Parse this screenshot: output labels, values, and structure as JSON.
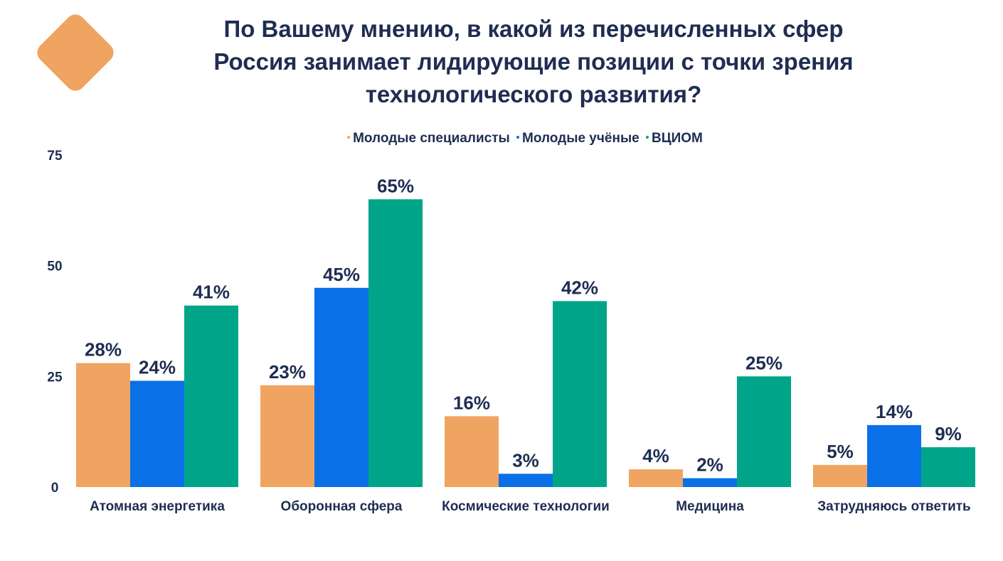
{
  "colors": {
    "brand": "#f0a461",
    "text": "#1f2d52",
    "series_orange": "#f0a461",
    "series_blue": "#0a70e8",
    "series_green": "#00a589"
  },
  "chart_data": {
    "type": "bar",
    "title_lines": [
      "По Вашему мнению, в какой из перечисленных сфер",
      "Россия занимает лидирующие позиции с точки зрения",
      "технологического развития?"
    ],
    "legend_position": "top",
    "categories": [
      "Атомная энергетика",
      "Оборонная сфера",
      "Космические технологии",
      "Медицина",
      "Затрудняюсь ответить"
    ],
    "series": [
      {
        "name": "Молодые специалисты",
        "color": "#f0a461",
        "values": [
          28,
          23,
          16,
          4,
          5
        ],
        "labels": [
          "28%",
          "23%",
          "16%",
          "4%",
          "5%"
        ]
      },
      {
        "name": "Молодые учёные",
        "color": "#0a70e8",
        "values": [
          24,
          45,
          3,
          2,
          14
        ],
        "labels": [
          "24%",
          "45%",
          "3%",
          "2%",
          "14%"
        ]
      },
      {
        "name": "ВЦИОМ",
        "color": "#00a589",
        "values": [
          41,
          65,
          42,
          25,
          9
        ],
        "labels": [
          "41%",
          "65%",
          "42%",
          "25%",
          "9%"
        ]
      }
    ],
    "yticks": [
      "0",
      "25",
      "50",
      "75"
    ],
    "ylim": [
      0,
      75
    ],
    "grid": false,
    "xlabel": "",
    "ylabel": ""
  }
}
